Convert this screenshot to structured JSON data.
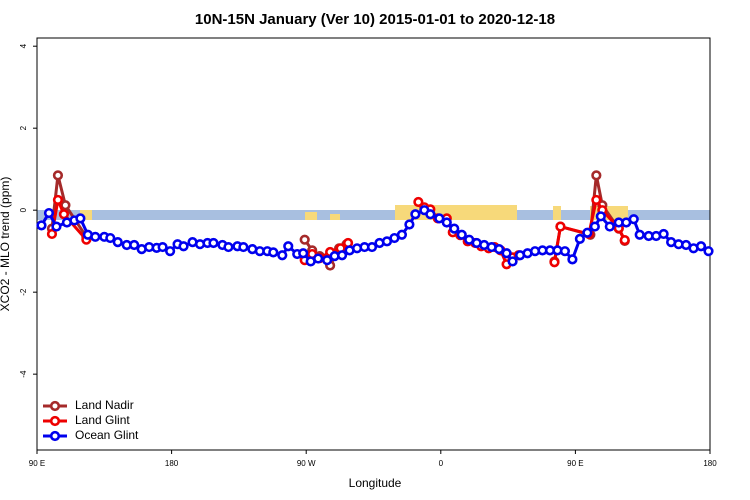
{
  "chart_data": {
    "type": "line",
    "title": "10N-15N January (Ver 10)   2015-01-01 to 2020-12-18",
    "x_label": "Longitude",
    "y_label": "XCO2 - MLO trend (ppm)",
    "xlim": [
      90,
      540
    ],
    "xticks": [
      {
        "value": 90,
        "label": "90 E"
      },
      {
        "value": 180,
        "label": "180"
      },
      {
        "value": 270,
        "label": "90 W"
      },
      {
        "value": 360,
        "label": "0"
      },
      {
        "value": 450,
        "label": "90 E"
      },
      {
        "value": 540,
        "label": "180"
      }
    ],
    "ylim": [
      -5.85,
      4.2
    ],
    "yticks": [
      -4,
      -2,
      0,
      2,
      4
    ],
    "legend": "bottom-left",
    "series": [
      {
        "name": "Land Nadir",
        "color": "#a52a2a",
        "x": [
          100,
          104,
          109,
          123,
          200,
          269,
          274,
          279,
          286,
          292,
          297,
          320,
          436,
          440,
          460,
          464,
          468,
          479,
          483
        ],
        "values": [
          -0.45,
          0.85,
          0.12,
          -0.65,
          null,
          -0.72,
          -0.98,
          -1.12,
          -1.35,
          -0.93,
          -0.83,
          null,
          -1.25,
          -0.4,
          -0.6,
          0.85,
          0.12,
          -0.45,
          -0.75
        ]
      },
      {
        "name": "Land Glint",
        "color": "#ee0000",
        "x": [
          100,
          104,
          108,
          123,
          200,
          269,
          274,
          279,
          286,
          293,
          298,
          320,
          345,
          349,
          353,
          358,
          364,
          368,
          373,
          378,
          383,
          387,
          392,
          396,
          400,
          404,
          408,
          412,
          425,
          436,
          440,
          459,
          464,
          468,
          479,
          483
        ],
        "values": [
          -0.58,
          0.25,
          -0.1,
          -0.72,
          null,
          -1.22,
          -1.07,
          -1.17,
          -1.02,
          -0.93,
          -0.8,
          null,
          0.2,
          0.07,
          0.02,
          -0.2,
          -0.2,
          -0.54,
          -0.61,
          -0.76,
          -0.8,
          -0.88,
          -0.93,
          -0.9,
          -0.98,
          -1.32,
          -1.15,
          -1.1,
          null,
          -1.27,
          -0.4,
          -0.58,
          0.25,
          0.0,
          -0.44,
          -0.73
        ]
      },
      {
        "name": "Ocean Glint",
        "color": "#0000ee",
        "x": [
          93,
          98,
          103,
          110,
          115,
          119,
          124,
          129,
          135,
          139,
          144,
          150,
          155,
          160,
          165,
          170,
          174,
          179,
          184,
          188,
          194,
          199,
          204,
          208,
          214,
          218,
          224,
          228,
          234,
          239,
          244,
          248,
          254,
          258,
          264,
          268,
          273,
          278,
          284,
          289,
          294,
          299,
          304,
          309,
          314,
          319,
          324,
          329,
          334,
          339,
          343,
          349,
          353,
          359,
          364,
          369,
          374,
          379,
          384,
          389,
          394,
          399,
          404,
          408,
          413,
          418,
          423,
          428,
          433,
          438,
          443,
          448,
          453,
          458,
          463,
          467,
          473,
          479,
          484,
          489,
          493,
          499,
          504,
          509,
          514,
          519,
          524,
          529,
          534,
          539
        ],
        "values": [
          -0.37,
          -0.07,
          -0.4,
          -0.3,
          -0.25,
          -0.2,
          -0.6,
          -0.65,
          -0.65,
          -0.68,
          -0.78,
          -0.85,
          -0.85,
          -0.95,
          -0.9,
          -0.92,
          -0.9,
          -1.0,
          -0.83,
          -0.88,
          -0.78,
          -0.83,
          -0.8,
          -0.8,
          -0.85,
          -0.9,
          -0.88,
          -0.9,
          -0.95,
          -1.0,
          -1.0,
          -1.03,
          -1.1,
          -0.88,
          -1.07,
          -1.05,
          -1.25,
          -1.18,
          -1.22,
          -1.12,
          -1.1,
          -0.98,
          -0.93,
          -0.9,
          -0.9,
          -0.8,
          -0.76,
          -0.68,
          -0.6,
          -0.35,
          -0.1,
          0.0,
          -0.1,
          -0.2,
          -0.3,
          -0.45,
          -0.6,
          -0.72,
          -0.8,
          -0.85,
          -0.9,
          -0.95,
          -1.05,
          -1.25,
          -1.1,
          -1.05,
          -1.0,
          -0.98,
          -0.98,
          -0.98,
          -1.0,
          -1.2,
          -0.7,
          -0.55,
          -0.4,
          -0.15,
          -0.4,
          -0.3,
          -0.3,
          -0.22,
          -0.6,
          -0.63,
          -0.63,
          -0.58,
          -0.78,
          -0.83,
          -0.85,
          -0.93,
          -0.88,
          -1.0
        ]
      }
    ]
  }
}
